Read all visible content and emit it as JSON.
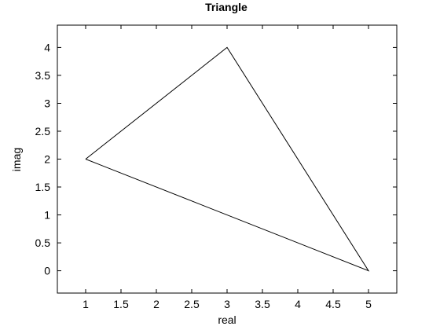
{
  "chart_data": {
    "type": "line",
    "title": "Triangle",
    "xlabel": "real",
    "ylabel": "imag",
    "xlim": [
      0.6,
      5.4
    ],
    "ylim": [
      -0.4,
      4.4
    ],
    "xticks": [
      1,
      1.5,
      2,
      2.5,
      3,
      3.5,
      4,
      4.5,
      5
    ],
    "xtick_labels": [
      "1",
      "1.5",
      "2",
      "2.5",
      "3",
      "3.5",
      "4",
      "4.5",
      "5"
    ],
    "yticks": [
      0,
      0.5,
      1,
      1.5,
      2,
      2.5,
      3,
      3.5,
      4
    ],
    "ytick_labels": [
      "0",
      "0.5",
      "1",
      "1.5",
      "2",
      "2.5",
      "3",
      "3.5",
      "4"
    ],
    "grid": false,
    "series": [
      {
        "x": [
          1,
          3,
          5,
          1
        ],
        "y": [
          2,
          4,
          0,
          2
        ],
        "color": "#000000"
      }
    ]
  }
}
